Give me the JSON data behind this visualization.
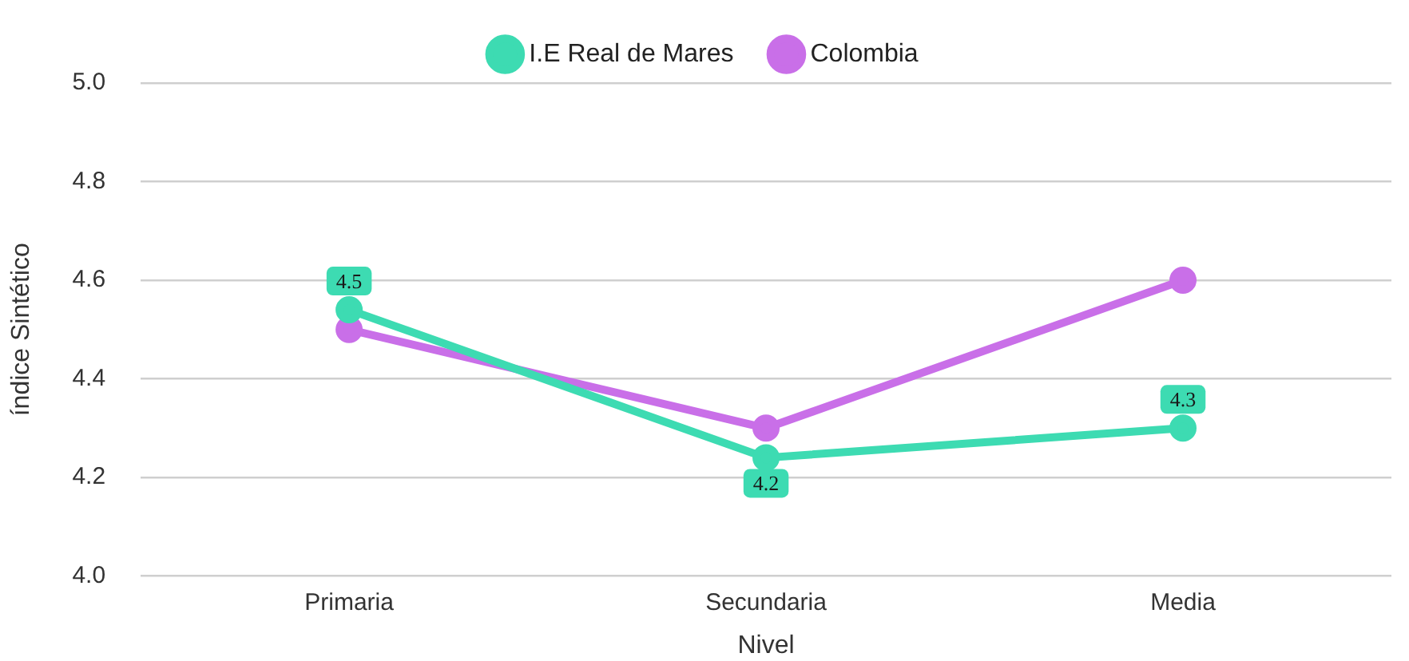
{
  "chart_data": {
    "type": "line",
    "xlabel": "Nivel",
    "ylabel": "índice Sintético",
    "categories": [
      "Primaria",
      "Secundaria",
      "Media"
    ],
    "series": [
      {
        "name": "I.E Real de Mares",
        "color": "#3ddbb2",
        "values": [
          4.54,
          4.24,
          4.3
        ],
        "value_labels": [
          "4.5",
          "4.2",
          "4.3"
        ]
      },
      {
        "name": "Colombia",
        "color": "#c96fe8",
        "values": [
          4.5,
          4.3,
          4.6
        ]
      }
    ],
    "ylim": [
      4.0,
      5.0
    ],
    "yticks": [
      {
        "value": 4.0,
        "label": "4.0"
      },
      {
        "value": 4.2,
        "label": "4.2"
      },
      {
        "value": 4.4,
        "label": "4.4"
      },
      {
        "value": 4.6,
        "label": "4.6"
      },
      {
        "value": 4.8,
        "label": "4.8"
      },
      {
        "value": 5.0,
        "label": "5.0"
      }
    ],
    "grid": "y",
    "legend": "top",
    "marker": "circle",
    "line_style": "solid"
  }
}
